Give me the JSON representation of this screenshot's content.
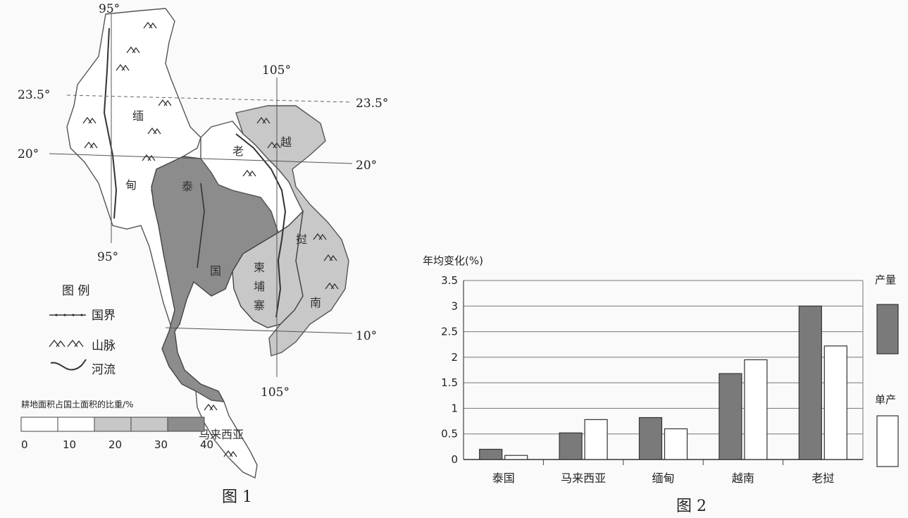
{
  "figure1": {
    "caption": "图 1",
    "longitudes": {
      "west_top": "95°",
      "west_bottom": "95°",
      "east_top": "105°",
      "east_bottom": "105°"
    },
    "latitudes": {
      "lat_23_5_left": "23.5°",
      "lat_23_5_right": "23.5°",
      "lat_20_left": "20°",
      "lat_20_right": "20°",
      "lat_10_right": "10°"
    },
    "country_labels": {
      "myanmar_1": "缅",
      "myanmar_2": "甸",
      "thailand_1": "泰",
      "thailand_2": "国",
      "laos": "老",
      "vietnam_1": "越",
      "vietnam_2": "南",
      "cambodia_1": "柬",
      "cambodia_2": "埔",
      "cambodia_3": "寨",
      "laos_e": "挝",
      "malaysia": "马来西亚"
    },
    "legend": {
      "title": "图 例",
      "border": "国界",
      "mountain": "山脉",
      "river": "河流",
      "scale_title": "耕地面积占国土面积的比重/%",
      "scale_ticks": [
        "0",
        "10",
        "20",
        "30",
        "40"
      ],
      "scale_colors": [
        "#ffffff",
        "#ffffff",
        "#c8c8c8",
        "#c8c8c8",
        "#8c8c8c"
      ]
    }
  },
  "chart_data": {
    "type": "bar",
    "title": "",
    "ylabel": "年均变化(%)",
    "xlabel": "",
    "ylim": [
      0,
      3.5
    ],
    "yticks": [
      "0",
      "0.5",
      "1",
      "1.5",
      "2",
      "2.5",
      "3",
      "3.5"
    ],
    "categories": [
      "泰国",
      "马来西亚",
      "缅甸",
      "越南",
      "老挝"
    ],
    "series": [
      {
        "name": "产量",
        "values": [
          0.2,
          0.52,
          0.82,
          1.68,
          3.0
        ],
        "color": "#7a7a7a"
      },
      {
        "name": "单产",
        "values": [
          0.08,
          0.78,
          0.6,
          1.95,
          2.22
        ],
        "color": "#ffffff"
      }
    ],
    "grid": true,
    "legend_position": "right",
    "caption": "图 2"
  }
}
